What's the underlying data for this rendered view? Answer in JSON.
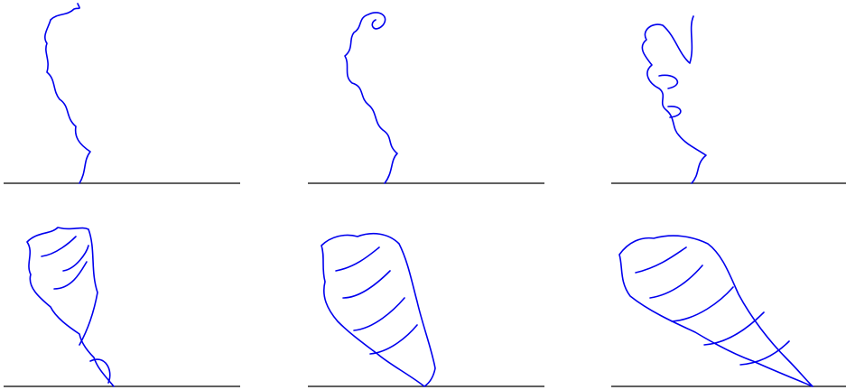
{
  "figure": {
    "layout": "2x3 grid",
    "curve_color": "#0000ee",
    "baseline_color": "#000000",
    "background": "#ffffff",
    "panels": [
      {
        "id": "panel-1",
        "row": 1,
        "col": 1,
        "stage": 1,
        "shape": "thin-meander"
      },
      {
        "id": "panel-2",
        "row": 1,
        "col": 2,
        "stage": 2,
        "shape": "meander-with-curls"
      },
      {
        "id": "panel-3",
        "row": 1,
        "col": 3,
        "stage": 3,
        "shape": "lobed-curl"
      },
      {
        "id": "panel-4",
        "row": 2,
        "col": 1,
        "stage": 4,
        "shape": "fan-lobes"
      },
      {
        "id": "panel-5",
        "row": 2,
        "col": 2,
        "stage": 5,
        "shape": "dense-fan"
      },
      {
        "id": "panel-6",
        "row": 2,
        "col": 3,
        "stage": 6,
        "shape": "wide-dense-fan"
      }
    ]
  }
}
